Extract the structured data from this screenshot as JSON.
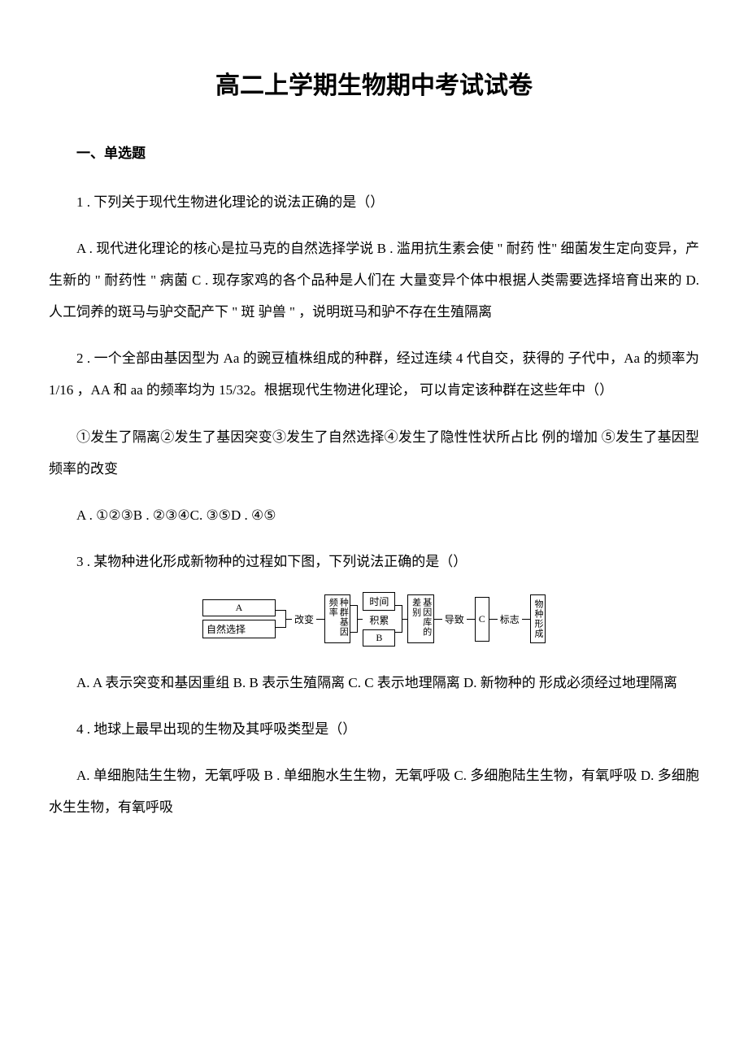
{
  "title": "高二上学期生物期中考试试卷",
  "section_header": "一、单选题",
  "q1": "1 . 下列关于现代生物进化理论的说法正确的是（）",
  "q1_options": "A . 现代进化理论的核心是拉马克的自然选择学说 B . 滥用抗生素会使 \" 耐药 性\" 细菌发生定向变异，产生新的 \" 耐药性 \" 病菌 C . 现存家鸡的各个品种是人们在 大量变异个体中根据人类需要选择培育出来的 D. 人工饲养的斑马与驴交配产下 \" 斑 驴兽 \" ，说明斑马和驴不存在生殖隔离",
  "q2": "2 . 一个全部由基因型为 Aa 的豌豆植株组成的种群，经过连续 4 代自交，获得的 子代中，Aa 的频率为 1/16 ，AA 和 aa 的频率均为 15/32。根据现代生物进化理论， 可以肯定该种群在这些年中（）",
  "q2_sub": "①发生了隔离②发生了基因突变③发生了自然选择④发生了隐性性状所占比 例的增加 ⑤发生了基因型频率的改变",
  "q2_options": "A . ①②③B . ②③④C. ③⑤D . ④⑤",
  "q3": "3 . 某物种进化形成新物种的过程如下图，下列说法正确的是（）",
  "q3_options": "A. A 表示突变和基因重组 B. B 表示生殖隔离 C. C 表示地理隔离 D. 新物种的 形成必须经过地理隔离",
  "q4": "4 . 地球上最早出现的生物及其呼吸类型是（）",
  "q4_options": "A. 单细胞陆生生物，无氧呼吸 B . 单细胞水生生物，无氧呼吸 C. 多细胞陆生生物，有氧呼吸 D. 多细胞水生生物，有氧呼吸",
  "diagram": {
    "box_a": "A",
    "box_natural": "自然选择",
    "label_change": "改变",
    "box_gene_freq": "种群基因频率",
    "box_time": "时间",
    "label_accumulate": "积累",
    "box_b": "B",
    "box_gene_diff": "基因库的差别",
    "label_cause": "导致",
    "box_c": "C",
    "label_mark": "标志",
    "box_species": "物种形成"
  }
}
